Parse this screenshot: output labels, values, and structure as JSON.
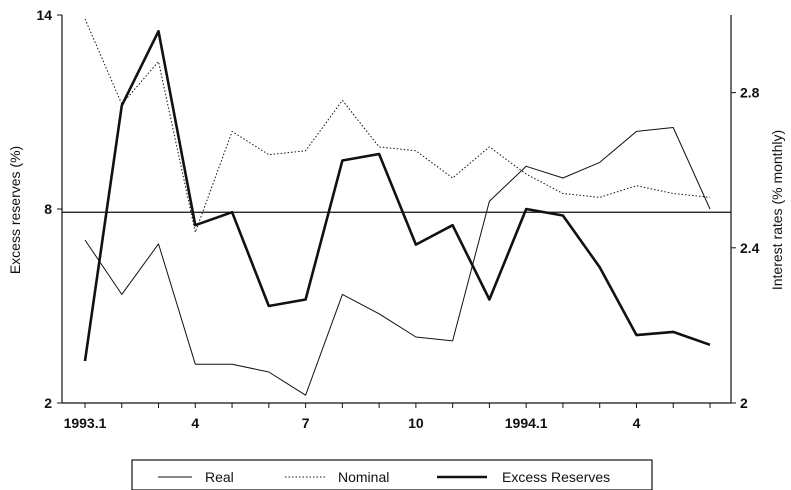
{
  "chart_data": {
    "type": "line",
    "title": "",
    "x": [
      "1993.1",
      "1993.2",
      "1993.3",
      "1993.4",
      "1993.5",
      "1993.6",
      "1993.7",
      "1993.8",
      "1993.9",
      "1993.10",
      "1993.11",
      "1993.12",
      "1994.1",
      "1994.2",
      "1994.3",
      "1994.4",
      "1994.5",
      "1994.6"
    ],
    "xtick_labels": [
      {
        "index": 0,
        "label": "1993.1"
      },
      {
        "index": 3,
        "label": "4"
      },
      {
        "index": 6,
        "label": "7"
      },
      {
        "index": 9,
        "label": "10"
      },
      {
        "index": 12,
        "label": "1994.1"
      },
      {
        "index": 15,
        "label": "4"
      }
    ],
    "y_left": {
      "label": "Excess reserves (%)",
      "ylim": [
        2,
        14
      ],
      "ticks": [
        2,
        8,
        14
      ]
    },
    "y_right": {
      "label": "Interest rates (% monthly)",
      "ylim": [
        2.0,
        3.0
      ],
      "ticks": [
        "2",
        "2.4",
        "2.8"
      ],
      "tick_values": [
        2.0,
        2.4,
        2.8
      ]
    },
    "reference_line": {
      "axis": "left",
      "value": 7.9
    },
    "grid": false,
    "legend": {
      "placement": "bottom-center"
    },
    "series": [
      {
        "name": "Real",
        "axis": "right",
        "style": "thin-solid",
        "values": [
          2.42,
          2.28,
          2.41,
          2.1,
          2.1,
          2.08,
          2.02,
          2.28,
          2.23,
          2.17,
          2.16,
          2.52,
          2.61,
          2.58,
          2.62,
          2.7,
          2.71,
          2.5
        ]
      },
      {
        "name": "Nominal",
        "axis": "right",
        "style": "dotted",
        "values": [
          2.99,
          2.77,
          2.88,
          2.44,
          2.7,
          2.64,
          2.65,
          2.78,
          2.66,
          2.65,
          2.58,
          2.66,
          2.59,
          2.54,
          2.53,
          2.56,
          2.54,
          2.53
        ]
      },
      {
        "name": "Excess Reserves",
        "axis": "left",
        "style": "thick-solid",
        "values": [
          3.3,
          11.2,
          13.5,
          7.5,
          7.9,
          5.0,
          5.2,
          9.5,
          9.7,
          6.9,
          7.5,
          5.2,
          8.0,
          7.8,
          6.2,
          4.1,
          4.2,
          3.8
        ]
      }
    ]
  }
}
